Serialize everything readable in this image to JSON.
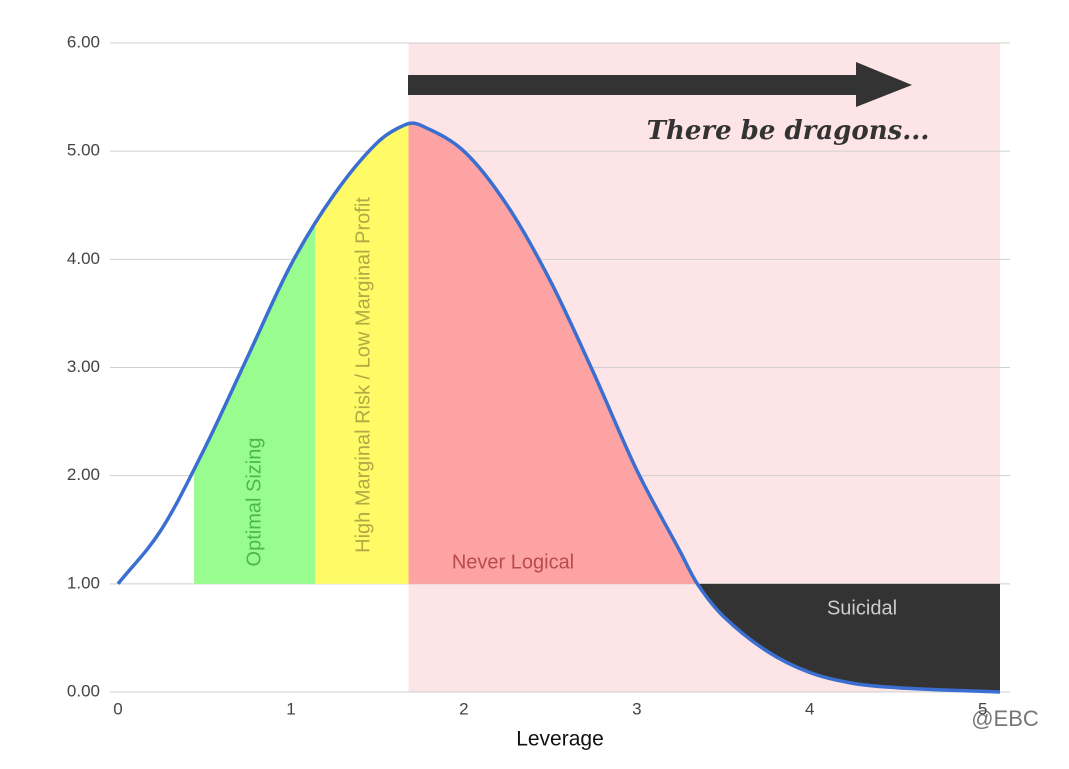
{
  "chart_data": {
    "type": "line",
    "x_label": "Leverage",
    "x": [
      0,
      0.25,
      0.5,
      0.75,
      1,
      1.25,
      1.5,
      1.67,
      1.75,
      2,
      2.25,
      2.5,
      2.75,
      3,
      3.25,
      3.35,
      3.5,
      3.75,
      4,
      4.25,
      4.5,
      4.75,
      5.1
    ],
    "series": [
      {
        "color": "#3a6fd1",
        "values": [
          1.0,
          1.5,
          2.25,
          3.1,
          3.95,
          4.6,
          5.08,
          5.25,
          5.24,
          5.0,
          4.5,
          3.8,
          2.95,
          2.05,
          1.3,
          1.0,
          0.7,
          0.38,
          0.18,
          0.08,
          0.04,
          0.02,
          0.0
        ]
      }
    ],
    "xlim": [
      0,
      5.1
    ],
    "ylim": [
      0,
      6
    ],
    "xticks": [
      0,
      1,
      2,
      3,
      4,
      5
    ],
    "yticks": [
      {
        "value": 0,
        "label": "0.00"
      },
      {
        "value": 1,
        "label": "1.00"
      },
      {
        "value": 2,
        "label": "2.00"
      },
      {
        "value": 3,
        "label": "3.00"
      },
      {
        "value": 4,
        "label": "4.00"
      },
      {
        "value": 5,
        "label": "5.00"
      },
      {
        "value": 6,
        "label": "6.00"
      }
    ],
    "grid": true,
    "threshold": 1,
    "danger_zone": {
      "x": [
        1.68,
        5.1
      ],
      "color": "#fde4e6",
      "annotation": "There be dragons..."
    },
    "regions": [
      {
        "name": "Optimal Sizing",
        "x": [
          0.44,
          1.14
        ],
        "color": "#98fc8f",
        "fill": "above",
        "text_color": "#4cb84a"
      },
      {
        "name": "High Marginal Risk / Low Marginal Profit",
        "x": [
          1.14,
          1.68
        ],
        "color": "#fefb66",
        "fill": "above",
        "text_color": "#b2a845"
      },
      {
        "name": "Never Logical",
        "x": [
          1.68,
          3.35
        ],
        "color": "#fea3a3",
        "fill": "above",
        "text_color": "#b84b4b"
      },
      {
        "name": "Suicidal",
        "x": [
          3.35,
          5.1
        ],
        "color": "#333333",
        "fill": "below",
        "text_color": "#cccccc"
      }
    ],
    "watermark": "@EBC"
  }
}
